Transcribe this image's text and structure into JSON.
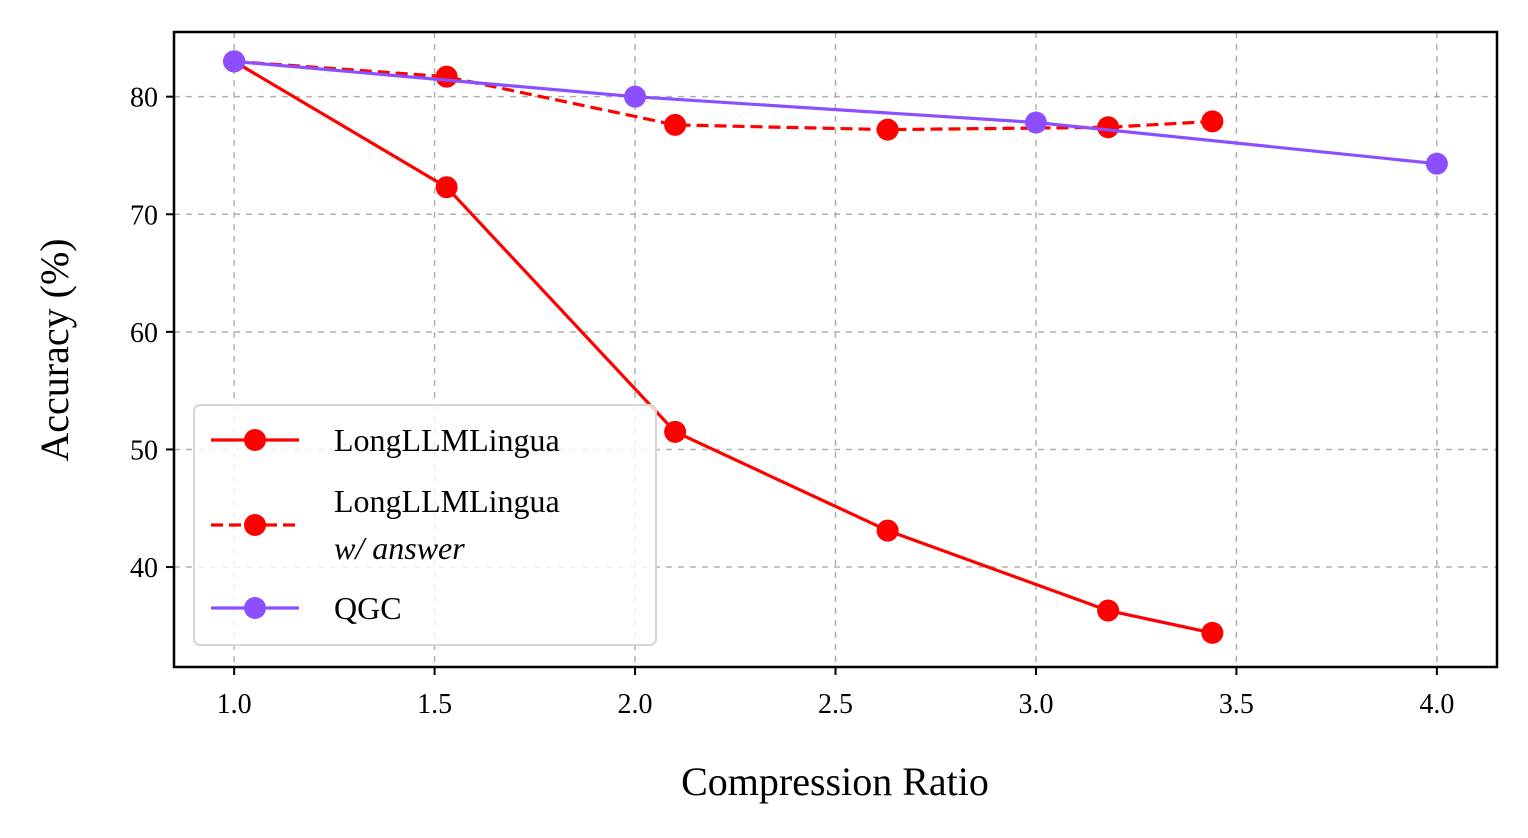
{
  "chart_data": {
    "type": "line",
    "title": "",
    "xlabel": "Compression Ratio",
    "ylabel": "Accuracy (%)",
    "xlim": [
      0.85,
      4.15
    ],
    "ylim": [
      31.5,
      85.5
    ],
    "xticks": [
      "1.0",
      "1.5",
      "2.0",
      "2.5",
      "3.0",
      "3.5",
      "4.0"
    ],
    "yticks": [
      "40",
      "50",
      "60",
      "70",
      "80"
    ],
    "grid": true,
    "legend_position": "lower-left",
    "series": [
      {
        "name": "LongLLMLingua",
        "name_line2": "",
        "color": "#ff0000",
        "linestyle": "solid",
        "x": [
          1.0,
          1.53,
          2.1,
          2.63,
          3.18,
          3.44
        ],
        "y": [
          83.0,
          72.3,
          51.5,
          43.1,
          36.3,
          34.4
        ]
      },
      {
        "name": "LongLLMLingua",
        "name_line2": "w/ answer",
        "color": "#ff0000",
        "linestyle": "dashed",
        "x": [
          1.0,
          1.53,
          2.1,
          2.63,
          3.18,
          3.44
        ],
        "y": [
          83.0,
          81.7,
          77.6,
          77.2,
          77.4,
          77.9
        ]
      },
      {
        "name": "QGC",
        "name_line2": "",
        "color": "#8c4fff",
        "linestyle": "solid",
        "x": [
          1.0,
          2.0,
          3.0,
          4.0
        ],
        "y": [
          83.0,
          80.0,
          77.8,
          74.3
        ]
      }
    ]
  }
}
